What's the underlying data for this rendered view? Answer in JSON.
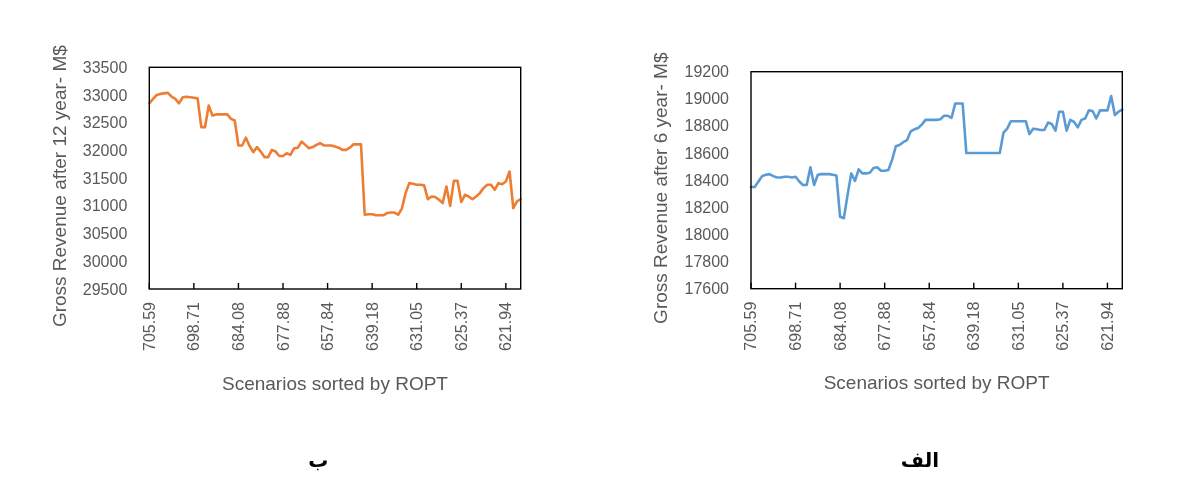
{
  "chart_data": [
    {
      "type": "line",
      "xlabel": "Scenarios sorted by ROPT",
      "ylabel": "Gross Revenue after 12 year- M$",
      "categories": [
        "705.59",
        null,
        null,
        null,
        null,
        null,
        null,
        null,
        null,
        null,
        null,
        null,
        "698.71",
        null,
        null,
        null,
        null,
        null,
        null,
        null,
        null,
        null,
        null,
        null,
        "684.08",
        null,
        null,
        null,
        null,
        null,
        null,
        null,
        null,
        null,
        null,
        null,
        "677.88",
        null,
        null,
        null,
        null,
        null,
        null,
        null,
        null,
        null,
        null,
        null,
        "657.84",
        null,
        null,
        null,
        null,
        null,
        null,
        null,
        null,
        null,
        null,
        null,
        "639.18",
        null,
        null,
        null,
        null,
        null,
        null,
        null,
        null,
        null,
        null,
        null,
        "631.05",
        null,
        null,
        null,
        null,
        null,
        null,
        null,
        null,
        null,
        null,
        null,
        "625.37",
        null,
        null,
        null,
        null,
        null,
        null,
        null,
        null,
        null,
        null,
        null,
        "621.94",
        null,
        null,
        null,
        null
      ],
      "series": [
        {
          "color": "#ED7D31",
          "values": [
            32850,
            32930,
            33000,
            33020,
            33030,
            33040,
            32970,
            32930,
            32850,
            32960,
            32970,
            32960,
            32950,
            32940,
            32420,
            32420,
            32810,
            32630,
            32650,
            32650,
            32650,
            32650,
            32570,
            32540,
            32090,
            32090,
            32230,
            32080,
            31970,
            32060,
            31980,
            31880,
            31880,
            32010,
            31980,
            31900,
            31900,
            31950,
            31920,
            32040,
            32050,
            32160,
            32100,
            32040,
            32060,
            32100,
            32130,
            32090,
            32090,
            32090,
            32070,
            32050,
            32010,
            32010,
            32050,
            32110,
            32110,
            32110,
            30840,
            30850,
            30850,
            30830,
            30830,
            30830,
            30870,
            30880,
            30880,
            30840,
            30950,
            31230,
            31410,
            31400,
            31380,
            31380,
            31370,
            31120,
            31170,
            31160,
            31110,
            31050,
            31350,
            31000,
            31450,
            31450,
            31070,
            31200,
            31170,
            31120,
            31170,
            31230,
            31320,
            31380,
            31380,
            31290,
            31410,
            31390,
            31440,
            31620,
            30960,
            31080,
            31120
          ]
        }
      ],
      "ylim": [
        29500,
        33500
      ],
      "yticks": [
        29500,
        30000,
        30500,
        31000,
        31500,
        32000,
        32500,
        33000,
        33500
      ],
      "annotations": [
        "ب"
      ]
    },
    {
      "type": "line",
      "xlabel": "Scenarios sorted by ROPT",
      "ylabel": "Gross Revenue after 6 year- M$",
      "categories": [
        "705.59",
        null,
        null,
        null,
        null,
        null,
        null,
        null,
        null,
        null,
        null,
        null,
        "698.71",
        null,
        null,
        null,
        null,
        null,
        null,
        null,
        null,
        null,
        null,
        null,
        "684.08",
        null,
        null,
        null,
        null,
        null,
        null,
        null,
        null,
        null,
        null,
        null,
        "677.88",
        null,
        null,
        null,
        null,
        null,
        null,
        null,
        null,
        null,
        null,
        null,
        "657.84",
        null,
        null,
        null,
        null,
        null,
        null,
        null,
        null,
        null,
        null,
        null,
        "639.18",
        null,
        null,
        null,
        null,
        null,
        null,
        null,
        null,
        null,
        null,
        null,
        "631.05",
        null,
        null,
        null,
        null,
        null,
        null,
        null,
        null,
        null,
        null,
        null,
        "625.37",
        null,
        null,
        null,
        null,
        null,
        null,
        null,
        null,
        null,
        null,
        null,
        "621.94",
        null,
        null,
        null,
        null
      ],
      "series": [
        {
          "color": "#5B9BD5",
          "values": [
            18350,
            18350,
            18390,
            18430,
            18440,
            18445,
            18430,
            18420,
            18420,
            18425,
            18425,
            18420,
            18425,
            18390,
            18365,
            18365,
            18495,
            18365,
            18440,
            18445,
            18445,
            18445,
            18440,
            18435,
            18130,
            18120,
            18290,
            18450,
            18395,
            18480,
            18450,
            18450,
            18455,
            18490,
            18495,
            18470,
            18470,
            18475,
            18550,
            18650,
            18660,
            18680,
            18695,
            18760,
            18775,
            18785,
            18810,
            18845,
            18845,
            18845,
            18845,
            18850,
            18875,
            18875,
            18860,
            18965,
            18965,
            18965,
            18600,
            18600,
            18600,
            18600,
            18600,
            18600,
            18600,
            18600,
            18600,
            18600,
            18750,
            18780,
            18835,
            18835,
            18835,
            18835,
            18835,
            18740,
            18780,
            18775,
            18770,
            18770,
            18825,
            18815,
            18765,
            18905,
            18905,
            18765,
            18845,
            18830,
            18790,
            18845,
            18855,
            18915,
            18910,
            18855,
            18915,
            18915,
            18915,
            19020,
            18880,
            18905,
            18920
          ]
        }
      ],
      "ylim": [
        17600,
        19200
      ],
      "yticks": [
        17600,
        17800,
        18000,
        18200,
        18400,
        18600,
        18800,
        19000,
        19200
      ],
      "annotations": [
        "الف"
      ]
    }
  ]
}
